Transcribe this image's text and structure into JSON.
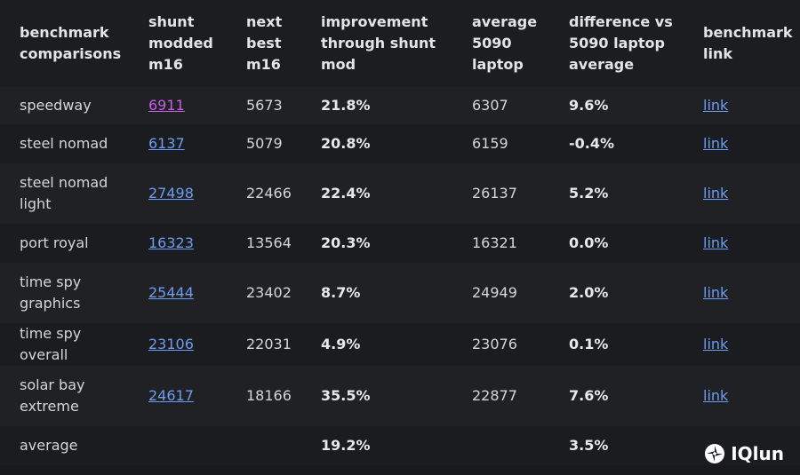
{
  "table": {
    "header": [
      "benchmark comparisons",
      "shunt modded m16",
      "next best m16",
      "improvement through shunt mod",
      "average 5090 laptop",
      "difference vs 5090 laptop average",
      "benchmark link"
    ],
    "rows": [
      [
        "speedway",
        "6911",
        "5673",
        "21.8%",
        "6307",
        "9.6%",
        "link"
      ],
      [
        "steel nomad",
        "6137",
        "5079",
        "20.8%",
        "6159",
        "-0.4%",
        "link"
      ],
      [
        "steel nomad light",
        "27498",
        "22466",
        "22.4%",
        "26137",
        "5.2%",
        "link"
      ],
      [
        "port royal",
        "16323",
        "13564",
        "20.3%",
        "16321",
        "0.0%",
        "link"
      ],
      [
        "time spy graphics",
        "25444",
        "23402",
        "8.7%",
        "24949",
        "2.0%",
        "link"
      ],
      [
        "time spy overall",
        "23106",
        "22031",
        "4.9%",
        "23076",
        "0.1%",
        "link"
      ],
      [
        "solar bay extreme",
        "24617",
        "18166",
        "35.5%",
        "22877",
        "7.6%",
        "link"
      ],
      [
        "average",
        null,
        null,
        "19.2%",
        null,
        "3.5%",
        null
      ]
    ]
  },
  "watermark": "IQlun"
}
